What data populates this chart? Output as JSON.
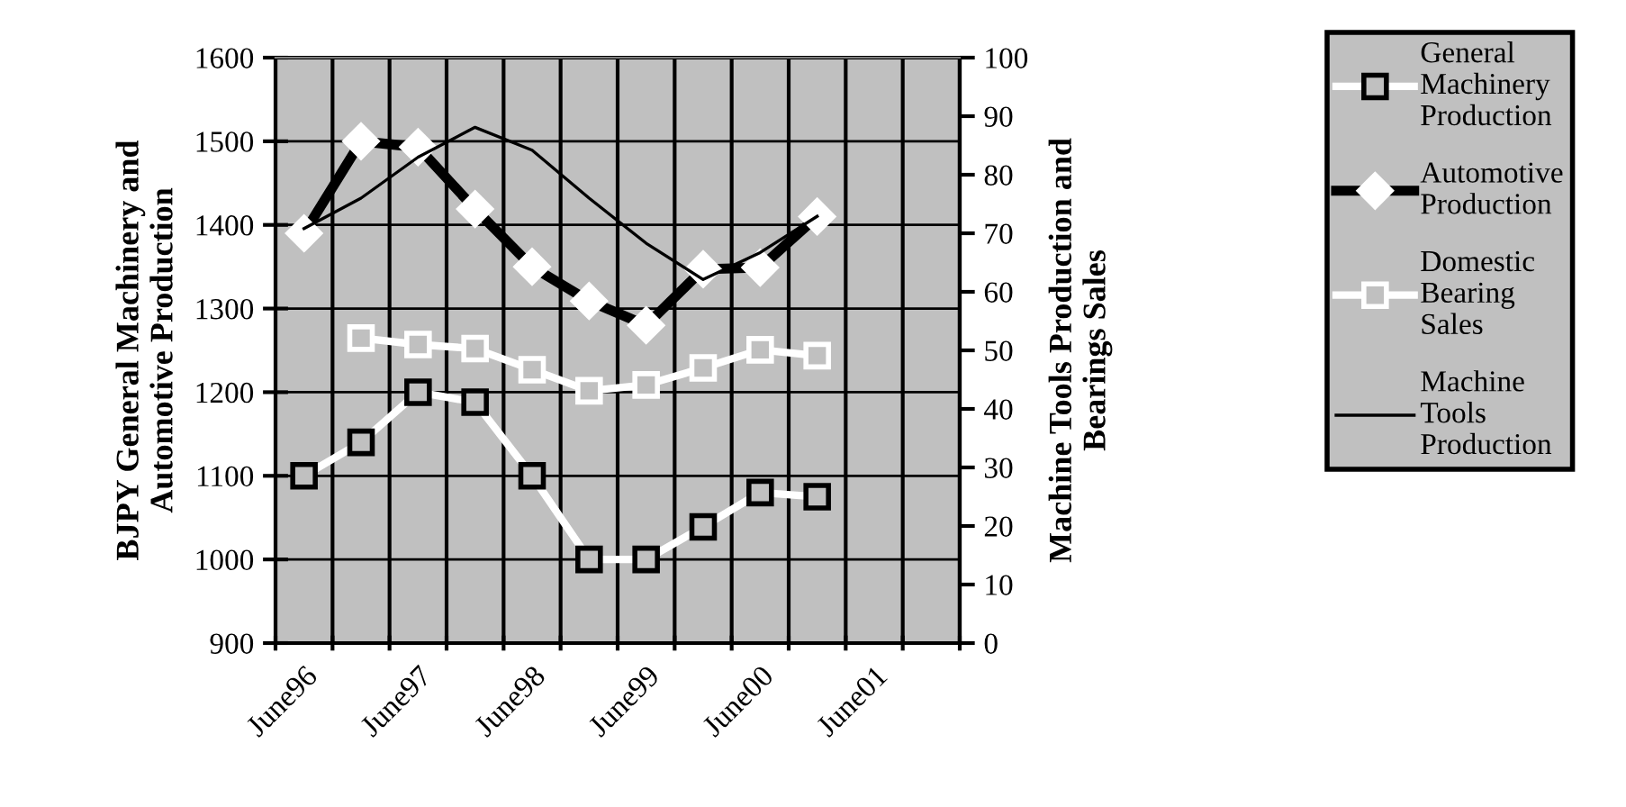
{
  "chart_data": {
    "type": "line",
    "ylabel": "BJPY General Machinery and\nAutomotive Production",
    "y2label": "Machine Tools Production and\nBearings Sales",
    "categories": [
      "June96",
      null,
      "June97",
      null,
      "June98",
      null,
      "June99",
      null,
      "June00",
      null,
      "June01",
      null
    ],
    "ylim": [
      900,
      1600
    ],
    "yticks": [
      900,
      1000,
      1100,
      1200,
      1300,
      1400,
      1500,
      1600
    ],
    "y2lim": [
      0,
      100
    ],
    "y2ticks": [
      0,
      10,
      20,
      30,
      40,
      50,
      60,
      70,
      80,
      90,
      100
    ],
    "grid": true,
    "legend": "right",
    "series": [
      {
        "name": "General Machinery Production",
        "color": "#ffffff",
        "marker": "square",
        "values": [
          1100,
          1140,
          1200,
          1188,
          1100,
          1000,
          1000,
          1039,
          1080,
          1075,
          null,
          null
        ]
      },
      {
        "name": "Automotive Production",
        "color": "#000000",
        "marker": "diamond",
        "values": [
          1390,
          1500,
          1493,
          1419,
          1350,
          1309,
          1280,
          1347,
          1349,
          1410,
          null,
          null
        ]
      },
      {
        "name": "Domestic Bearing Sales",
        "color": "#ffffff",
        "marker": "square",
        "axis": "y2",
        "values": [
          null,
          52.1,
          51.0,
          50.3,
          46.7,
          43.1,
          44.1,
          47.0,
          50.1,
          49.1,
          null,
          null
        ]
      },
      {
        "name": "Machine Tools Production",
        "color": "#000000",
        "marker": "none",
        "axis": "y2",
        "values": [
          70.8,
          76.0,
          83.0,
          88.1,
          84.2,
          76.0,
          68.3,
          62.1,
          66.7,
          72.9,
          null,
          null
        ]
      }
    ]
  }
}
